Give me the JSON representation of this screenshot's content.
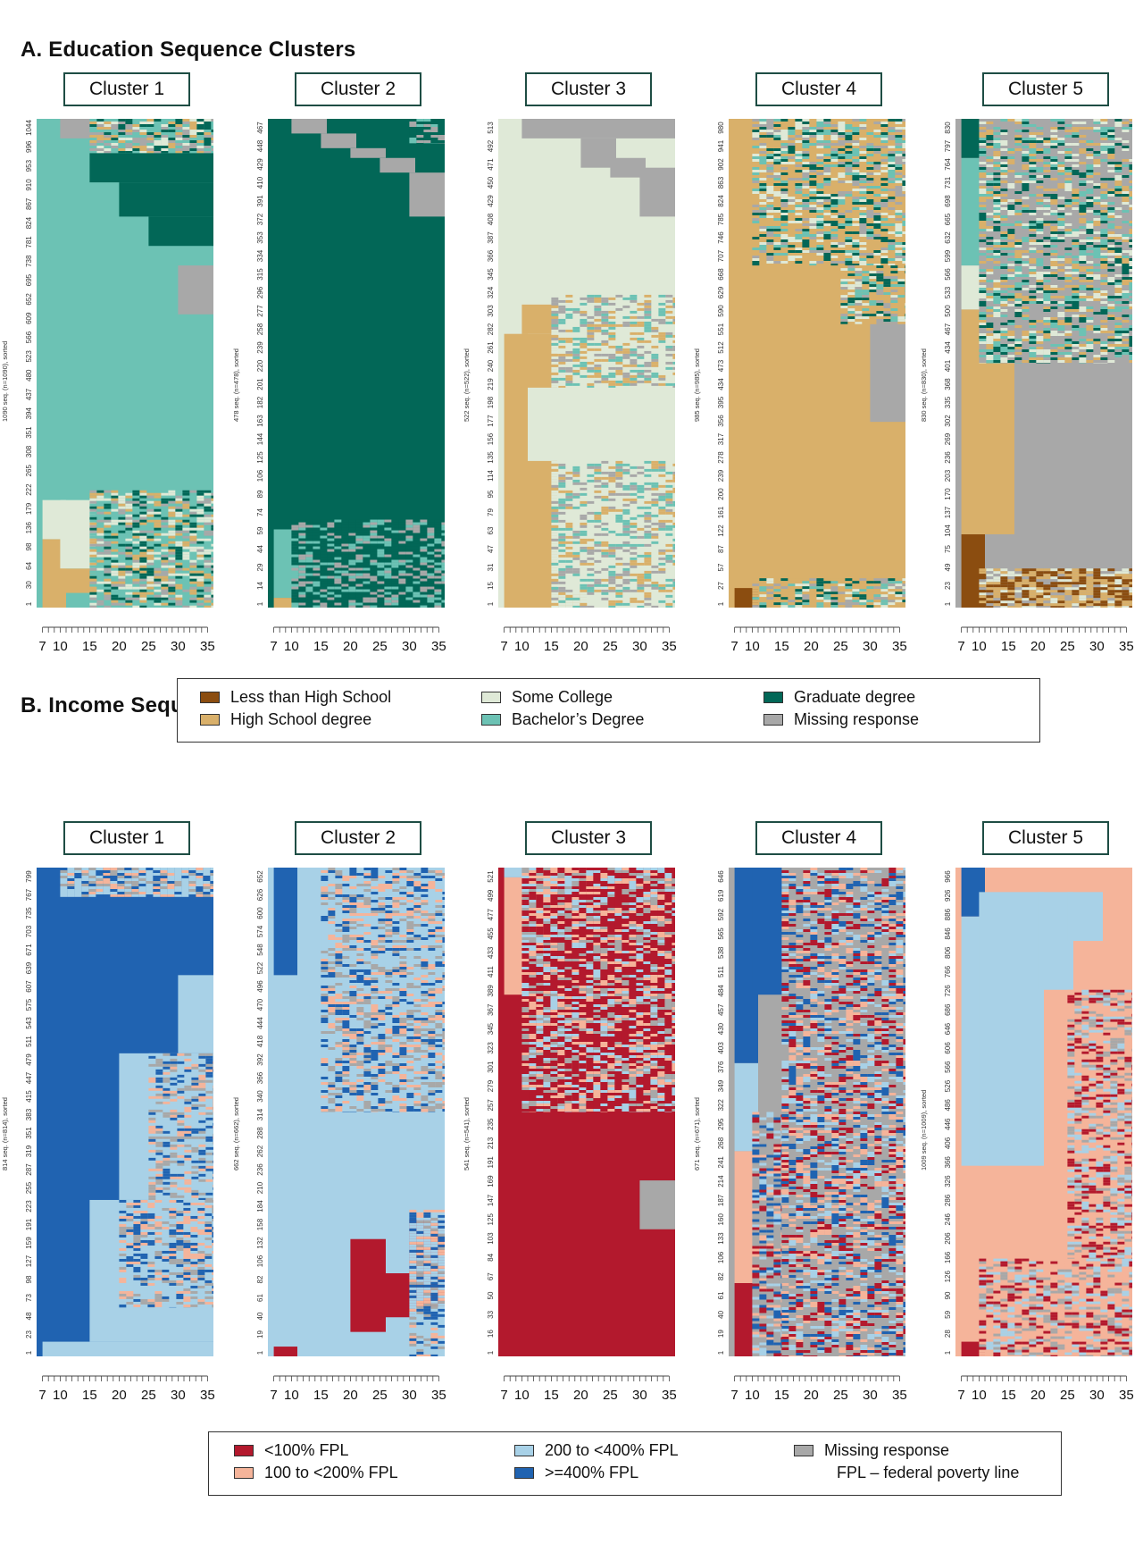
{
  "sections": {
    "a_title": "A. Education Sequence Clusters",
    "b_title": "B. Income Sequence Clusters"
  },
  "edu_legend": [
    {
      "label": "Less than High School",
      "color": "#8b4d10"
    },
    {
      "label": "High School degree",
      "color": "#d9b06a"
    },
    {
      "label": "Some College",
      "color": "#dfe9d7"
    },
    {
      "label": "Bachelor’s Degree",
      "color": "#6cc2b4"
    },
    {
      "label": "Graduate degree",
      "color": "#026757"
    },
    {
      "label": "Missing response",
      "color": "#a8a8a8"
    }
  ],
  "inc_legend": [
    {
      "label": "<100% FPL",
      "color": "#b3192d"
    },
    {
      "label": "100 to <200% FPL",
      "color": "#f5b49a"
    },
    {
      "label": "200 to <400% FPL",
      "color": "#a8d1e7"
    },
    {
      "label": ">=400% FPL",
      "color": "#2063b1"
    },
    {
      "label": "Missing response",
      "color": "#a8a8a8"
    }
  ],
  "inc_note": "FPL – federal poverty line",
  "chart_data": [
    {
      "type": "heatmap",
      "panel": "A",
      "title": "Cluster 1",
      "ylabel": "1090 seq. (n=1090), sorted",
      "x_ticks": [
        7,
        10,
        15,
        20,
        25,
        30,
        35
      ],
      "y_ticks": [
        "1",
        "30",
        "64",
        "98",
        "136",
        "179",
        "222",
        "265",
        "308",
        "351",
        "394",
        "437",
        "480",
        "523",
        "566",
        "609",
        "652",
        "695",
        "738",
        "781",
        "824",
        "867",
        "910",
        "953",
        "996",
        "1044"
      ],
      "background": "bachelor",
      "blocks": [
        {
          "x0": 7,
          "x1": 35,
          "y0": 0.0,
          "y1": 0.0,
          "state": "gradeu"
        },
        {
          "x0": 7,
          "x1": 10,
          "y0": 0.0,
          "y1": 0.14,
          "state": "hs"
        },
        {
          "x0": 10,
          "x1": 15,
          "y0": 0.03,
          "y1": 0.08,
          "state": "hs"
        },
        {
          "x0": 7,
          "x1": 10,
          "y0": 0.14,
          "y1": 0.22,
          "state": "some"
        },
        {
          "x0": 10,
          "x1": 15,
          "y0": 0.08,
          "y1": 0.22,
          "state": "some"
        },
        {
          "x0": 15,
          "x1": 35,
          "y0": 0.0,
          "y1": 0.24,
          "state": "mixed"
        },
        {
          "x0": 7,
          "x1": 10,
          "y0": 0.97,
          "y1": 1.0,
          "state": "bachelor"
        },
        {
          "x0": 10,
          "x1": 15,
          "y0": 0.96,
          "y1": 1.0,
          "state": "missing"
        },
        {
          "x0": 15,
          "x1": 35,
          "y0": 0.87,
          "y1": 0.93,
          "state": "graduate"
        },
        {
          "x0": 20,
          "x1": 35,
          "y0": 0.8,
          "y1": 0.87,
          "state": "graduate"
        },
        {
          "x0": 25,
          "x1": 35,
          "y0": 0.74,
          "y1": 0.8,
          "state": "graduate"
        },
        {
          "x0": 30,
          "x1": 35,
          "y0": 0.6,
          "y1": 0.7,
          "state": "missing"
        },
        {
          "x0": 15,
          "x1": 35,
          "y0": 0.93,
          "y1": 1.0,
          "state": "mixed"
        }
      ]
    },
    {
      "type": "heatmap",
      "panel": "A",
      "title": "Cluster 2",
      "ylabel": "478 seq. (n=478), sorted",
      "x_ticks": [
        7,
        10,
        15,
        20,
        25,
        30,
        35
      ],
      "y_ticks": [
        "1",
        "14",
        "29",
        "44",
        "59",
        "74",
        "89",
        "106",
        "125",
        "144",
        "163",
        "182",
        "201",
        "220",
        "239",
        "258",
        "277",
        "296",
        "315",
        "334",
        "353",
        "372",
        "391",
        "410",
        "429",
        "448",
        "467"
      ],
      "background": "graduate",
      "blocks": [
        {
          "x0": 7,
          "x1": 10,
          "y0": 0.02,
          "y1": 0.16,
          "state": "bachelor"
        },
        {
          "x0": 7,
          "x1": 10,
          "y0": 0.0,
          "y1": 0.02,
          "state": "hs"
        },
        {
          "x0": 10,
          "x1": 35,
          "y0": 0.0,
          "y1": 0.18,
          "state": "mixed_g"
        },
        {
          "x0": 10,
          "x1": 15,
          "y0": 0.97,
          "y1": 1.0,
          "state": "missing"
        },
        {
          "x0": 15,
          "x1": 20,
          "y0": 0.94,
          "y1": 0.97,
          "state": "missing"
        },
        {
          "x0": 20,
          "x1": 25,
          "y0": 0.92,
          "y1": 0.94,
          "state": "missing"
        },
        {
          "x0": 25,
          "x1": 30,
          "y0": 0.89,
          "y1": 0.92,
          "state": "missing"
        },
        {
          "x0": 30,
          "x1": 35,
          "y0": 0.8,
          "y1": 0.89,
          "state": "missing"
        },
        {
          "x0": 30,
          "x1": 35,
          "y0": 0.95,
          "y1": 1.0,
          "state": "mixed_g"
        }
      ]
    },
    {
      "type": "heatmap",
      "panel": "A",
      "title": "Cluster 3",
      "ylabel": "522 seq. (n=522), sorted",
      "x_ticks": [
        7,
        10,
        15,
        20,
        25,
        30,
        35
      ],
      "y_ticks": [
        "1",
        "15",
        "31",
        "47",
        "63",
        "79",
        "95",
        "114",
        "135",
        "156",
        "177",
        "198",
        "219",
        "240",
        "261",
        "282",
        "303",
        "324",
        "345",
        "366",
        "387",
        "408",
        "429",
        "450",
        "471",
        "492",
        "513"
      ],
      "background": "some",
      "blocks": [
        {
          "x0": 7,
          "x1": 10,
          "y0": 0.0,
          "y1": 0.56,
          "state": "hs"
        },
        {
          "x0": 10,
          "x1": 15,
          "y0": 0.0,
          "y1": 0.3,
          "state": "hs"
        },
        {
          "x0": 15,
          "x1": 20,
          "y0": 0.0,
          "y1": 0.03,
          "state": "hs"
        },
        {
          "x0": 10,
          "x1": 15,
          "y0": 0.45,
          "y1": 0.56,
          "state": "hs"
        },
        {
          "x0": 10,
          "x1": 15,
          "y0": 0.56,
          "y1": 0.62,
          "state": "hs"
        },
        {
          "x0": 15,
          "x1": 35,
          "y0": 0.0,
          "y1": 0.3,
          "state": "mixed_s"
        },
        {
          "x0": 15,
          "x1": 35,
          "y0": 0.45,
          "y1": 0.64,
          "state": "mixed_s"
        },
        {
          "x0": 10,
          "x1": 35,
          "y0": 0.96,
          "y1": 1.0,
          "state": "missing"
        },
        {
          "x0": 20,
          "x1": 25,
          "y0": 0.9,
          "y1": 0.96,
          "state": "missing"
        },
        {
          "x0": 25,
          "x1": 30,
          "y0": 0.88,
          "y1": 0.92,
          "state": "missing"
        },
        {
          "x0": 30,
          "x1": 35,
          "y0": 0.8,
          "y1": 0.9,
          "state": "missing"
        }
      ]
    },
    {
      "type": "heatmap",
      "panel": "A",
      "title": "Cluster 4",
      "ylabel": "985 seq. (n=985), sorted",
      "x_ticks": [
        7,
        10,
        15,
        20,
        25,
        30,
        35
      ],
      "y_ticks": [
        "1",
        "27",
        "57",
        "87",
        "122",
        "161",
        "200",
        "239",
        "278",
        "317",
        "356",
        "395",
        "434",
        "473",
        "512",
        "551",
        "590",
        "629",
        "668",
        "707",
        "746",
        "785",
        "824",
        "863",
        "902",
        "941",
        "980"
      ],
      "background": "hs",
      "blocks": [
        {
          "x0": 7,
          "x1": 10,
          "y0": 0.0,
          "y1": 0.04,
          "state": "less"
        },
        {
          "x0": 10,
          "x1": 35,
          "y0": 0.0,
          "y1": 0.06,
          "state": "mixed_h"
        },
        {
          "x0": 10,
          "x1": 35,
          "y0": 0.7,
          "y1": 1.0,
          "state": "mixed_h"
        },
        {
          "x0": 30,
          "x1": 35,
          "y0": 0.38,
          "y1": 0.58,
          "state": "missing"
        },
        {
          "x0": 25,
          "x1": 35,
          "y0": 0.58,
          "y1": 0.7,
          "state": "mixed_h"
        }
      ]
    },
    {
      "type": "heatmap",
      "panel": "A",
      "title": "Cluster 5",
      "ylabel": "830 seq. (n=830), sorted",
      "x_ticks": [
        7,
        10,
        15,
        20,
        25,
        30,
        35
      ],
      "y_ticks": [
        "1",
        "23",
        "49",
        "75",
        "104",
        "137",
        "170",
        "203",
        "236",
        "269",
        "302",
        "335",
        "368",
        "401",
        "434",
        "467",
        "500",
        "533",
        "566",
        "599",
        "632",
        "665",
        "698",
        "731",
        "764",
        "797",
        "830"
      ],
      "background": "missing",
      "blocks": [
        {
          "x0": 7,
          "x1": 10,
          "y0": 0.0,
          "y1": 0.15,
          "state": "less"
        },
        {
          "x0": 10,
          "x1": 35,
          "y0": 0.0,
          "y1": 0.08,
          "state": "mixed_l"
        },
        {
          "x0": 7,
          "x1": 10,
          "y0": 0.15,
          "y1": 0.61,
          "state": "hs"
        },
        {
          "x0": 10,
          "x1": 15,
          "y0": 0.15,
          "y1": 0.5,
          "state": "hs"
        },
        {
          "x0": 7,
          "x1": 10,
          "y0": 0.61,
          "y1": 0.7,
          "state": "some"
        },
        {
          "x0": 7,
          "x1": 10,
          "y0": 0.7,
          "y1": 0.92,
          "state": "bachelor"
        },
        {
          "x0": 7,
          "x1": 10,
          "y0": 0.92,
          "y1": 1.0,
          "state": "graduate"
        },
        {
          "x0": 10,
          "x1": 35,
          "y0": 0.5,
          "y1": 1.0,
          "state": "mixed_m"
        }
      ]
    },
    {
      "type": "heatmap",
      "panel": "B",
      "title": "Cluster 1",
      "ylabel": "814 seq. (n=814), sorted",
      "x_ticks": [
        7,
        10,
        15,
        20,
        25,
        30,
        35
      ],
      "y_ticks": [
        "1",
        "23",
        "48",
        "73",
        "98",
        "127",
        "159",
        "191",
        "223",
        "255",
        "287",
        "319",
        "351",
        "383",
        "415",
        "447",
        "479",
        "511",
        "543",
        "575",
        "607",
        "639",
        "671",
        "703",
        "735",
        "767",
        "799"
      ],
      "background": "high",
      "blocks": [
        {
          "x0": 7,
          "x1": 35,
          "y0": 0.0,
          "y1": 0.03,
          "state": "mid"
        },
        {
          "x0": 15,
          "x1": 35,
          "y0": 0.03,
          "y1": 0.32,
          "state": "mid"
        },
        {
          "x0": 20,
          "x1": 35,
          "y0": 0.32,
          "y1": 0.62,
          "state": "mid"
        },
        {
          "x0": 30,
          "x1": 35,
          "y0": 0.62,
          "y1": 0.78,
          "state": "mid"
        },
        {
          "x0": 20,
          "x1": 35,
          "y0": 0.1,
          "y1": 0.32,
          "state": "mixed_i"
        },
        {
          "x0": 25,
          "x1": 35,
          "y0": 0.32,
          "y1": 0.62,
          "state": "mixed_i"
        },
        {
          "x0": 10,
          "x1": 35,
          "y0": 0.94,
          "y1": 1.0,
          "state": "mixed_i"
        }
      ]
    },
    {
      "type": "heatmap",
      "panel": "B",
      "title": "Cluster 2",
      "ylabel": "662 seq. (n=662), sorted",
      "x_ticks": [
        7,
        10,
        15,
        20,
        25,
        30,
        35
      ],
      "y_ticks": [
        "1",
        "19",
        "40",
        "61",
        "82",
        "106",
        "132",
        "158",
        "184",
        "210",
        "236",
        "262",
        "288",
        "314",
        "340",
        "366",
        "392",
        "418",
        "444",
        "470",
        "496",
        "522",
        "548",
        "574",
        "600",
        "626",
        "652"
      ],
      "background": "mid",
      "blocks": [
        {
          "x0": 7,
          "x1": 10,
          "y0": 0.78,
          "y1": 1.0,
          "state": "high"
        },
        {
          "x0": 7,
          "x1": 10,
          "y0": 0.0,
          "y1": 0.02,
          "state": "low"
        },
        {
          "x0": 20,
          "x1": 25,
          "y0": 0.05,
          "y1": 0.24,
          "state": "low"
        },
        {
          "x0": 25,
          "x1": 30,
          "y0": 0.08,
          "y1": 0.17,
          "state": "low"
        },
        {
          "x0": 30,
          "x1": 35,
          "y0": 0.1,
          "y1": 0.28,
          "state": "low"
        },
        {
          "x0": 15,
          "x1": 35,
          "y0": 0.5,
          "y1": 1.0,
          "state": "mixed_i"
        },
        {
          "x0": 30,
          "x1": 35,
          "y0": 0.0,
          "y1": 0.3,
          "state": "mixed_i"
        }
      ]
    },
    {
      "type": "heatmap",
      "panel": "B",
      "title": "Cluster 3",
      "ylabel": "541 seq. (n=541), sorted",
      "x_ticks": [
        7,
        10,
        15,
        20,
        25,
        30,
        35
      ],
      "y_ticks": [
        "1",
        "16",
        "33",
        "50",
        "67",
        "84",
        "103",
        "125",
        "147",
        "169",
        "191",
        "213",
        "235",
        "257",
        "279",
        "301",
        "323",
        "345",
        "367",
        "389",
        "411",
        "433",
        "455",
        "477",
        "499",
        "521"
      ],
      "background": "low",
      "blocks": [
        {
          "x0": 7,
          "x1": 10,
          "y0": 0.74,
          "y1": 0.98,
          "state": "lowmid"
        },
        {
          "x0": 7,
          "x1": 10,
          "y0": 0.98,
          "y1": 1.0,
          "state": "mid"
        },
        {
          "x0": 10,
          "x1": 15,
          "y0": 0.82,
          "y1": 1.0,
          "state": "lowmid"
        },
        {
          "x0": 15,
          "x1": 20,
          "y0": 0.95,
          "y1": 1.0,
          "state": "lowmid"
        },
        {
          "x0": 15,
          "x1": 20,
          "y0": 0.52,
          "y1": 0.62,
          "state": "lowmid"
        },
        {
          "x0": 10,
          "x1": 35,
          "y0": 0.5,
          "y1": 1.0,
          "state": "mixed_r"
        },
        {
          "x0": 30,
          "x1": 35,
          "y0": 0.26,
          "y1": 0.36,
          "state": "missing"
        }
      ]
    },
    {
      "type": "heatmap",
      "panel": "B",
      "title": "Cluster 4",
      "ylabel": "671 seq. (n=671), sorted",
      "x_ticks": [
        7,
        10,
        15,
        20,
        25,
        30,
        35
      ],
      "y_ticks": [
        "1",
        "19",
        "40",
        "61",
        "82",
        "106",
        "133",
        "160",
        "187",
        "214",
        "241",
        "268",
        "295",
        "322",
        "349",
        "376",
        "403",
        "430",
        "457",
        "484",
        "511",
        "538",
        "565",
        "592",
        "619",
        "646"
      ],
      "background": "missing",
      "blocks": [
        {
          "x0": 7,
          "x1": 10,
          "y0": 0.0,
          "y1": 0.15,
          "state": "low"
        },
        {
          "x0": 7,
          "x1": 10,
          "y0": 0.15,
          "y1": 0.42,
          "state": "lowmid"
        },
        {
          "x0": 7,
          "x1": 10,
          "y0": 0.42,
          "y1": 0.6,
          "state": "mid"
        },
        {
          "x0": 7,
          "x1": 10,
          "y0": 0.6,
          "y1": 1.0,
          "state": "high"
        },
        {
          "x0": 10,
          "x1": 15,
          "y0": 0.74,
          "y1": 1.0,
          "state": "high"
        },
        {
          "x0": 10,
          "x1": 15,
          "y0": 0.0,
          "y1": 0.5,
          "state": "mixed_q"
        },
        {
          "x0": 15,
          "x1": 35,
          "y0": 0.0,
          "y1": 1.0,
          "state": "mixed_q"
        }
      ]
    },
    {
      "type": "heatmap",
      "panel": "B",
      "title": "Cluster 5",
      "ylabel": "1009 seq. (n=1009), sorted",
      "x_ticks": [
        7,
        10,
        15,
        20,
        25,
        30,
        35
      ],
      "y_ticks": [
        "1",
        "28",
        "59",
        "90",
        "126",
        "166",
        "206",
        "246",
        "286",
        "326",
        "366",
        "406",
        "446",
        "486",
        "526",
        "566",
        "606",
        "646",
        "686",
        "726",
        "766",
        "806",
        "846",
        "886",
        "926",
        "966"
      ],
      "background": "lowmid",
      "blocks": [
        {
          "x0": 7,
          "x1": 10,
          "y0": 0.0,
          "y1": 0.03,
          "state": "low"
        },
        {
          "x0": 7,
          "x1": 10,
          "y0": 0.39,
          "y1": 0.9,
          "state": "mid"
        },
        {
          "x0": 7,
          "x1": 10,
          "y0": 0.9,
          "y1": 1.0,
          "state": "high"
        },
        {
          "x0": 10,
          "x1": 20,
          "y0": 0.39,
          "y1": 0.95,
          "state": "mid"
        },
        {
          "x0": 20,
          "x1": 25,
          "y0": 0.75,
          "y1": 0.95,
          "state": "mid"
        },
        {
          "x0": 25,
          "x1": 30,
          "y0": 0.85,
          "y1": 0.95,
          "state": "mid"
        },
        {
          "x0": 10,
          "x1": 35,
          "y0": 0.0,
          "y1": 0.2,
          "state": "mixed_p"
        },
        {
          "x0": 25,
          "x1": 35,
          "y0": 0.2,
          "y1": 0.75,
          "state": "mixed_p"
        }
      ]
    }
  ]
}
